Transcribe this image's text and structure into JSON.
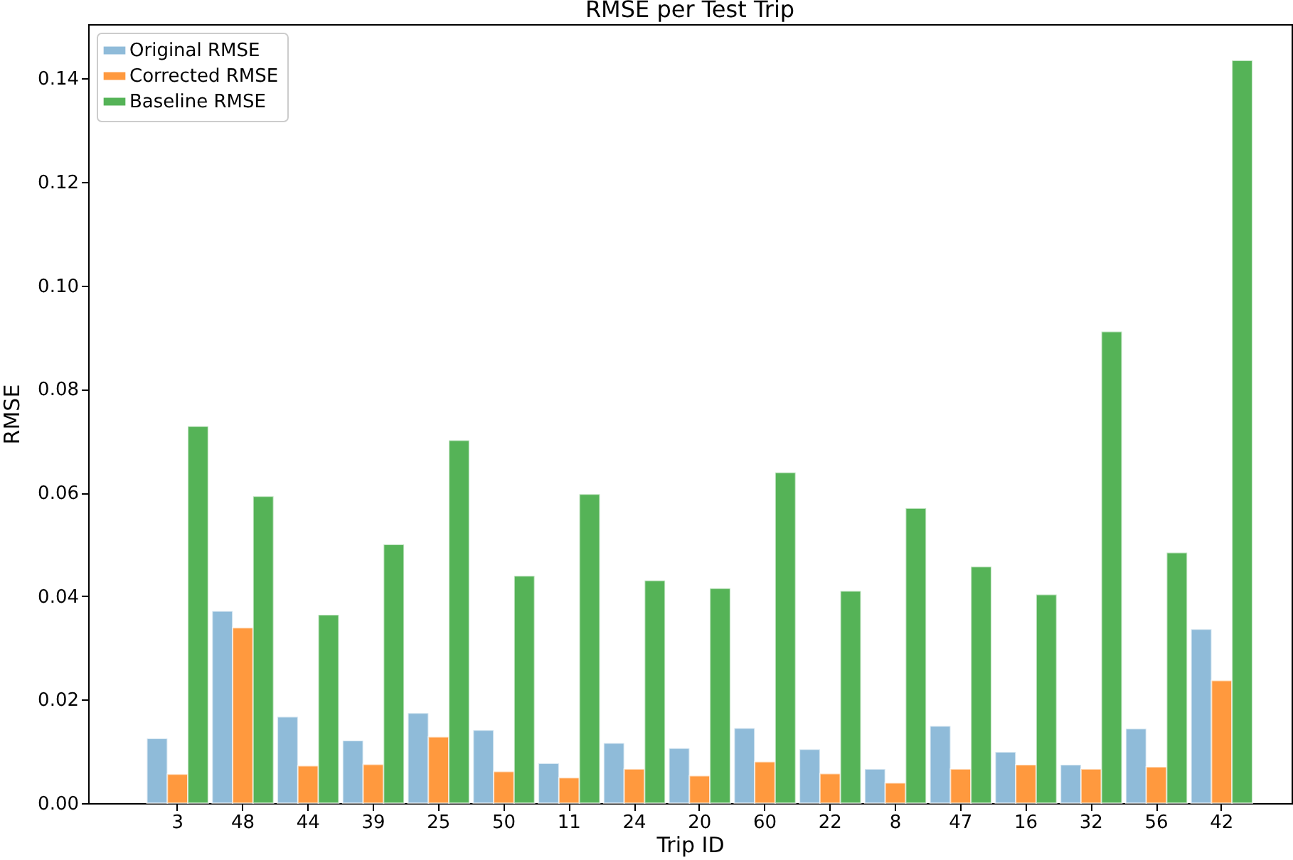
{
  "chart_data": {
    "type": "bar",
    "title": "RMSE per Test Trip",
    "xlabel": "Trip ID",
    "ylabel": "RMSE",
    "categories": [
      "3",
      "48",
      "44",
      "39",
      "25",
      "50",
      "11",
      "24",
      "20",
      "60",
      "22",
      "8",
      "47",
      "16",
      "32",
      "56",
      "42"
    ],
    "series": [
      {
        "name": "Original RMSE",
        "color": "#8fbbd9",
        "values": [
          0.0125,
          0.0371,
          0.0167,
          0.0121,
          0.0174,
          0.0141,
          0.0077,
          0.0116,
          0.0106,
          0.0145,
          0.0104,
          0.0066,
          0.0149,
          0.0099,
          0.0074,
          0.0144,
          0.0336
        ]
      },
      {
        "name": "Corrected RMSE",
        "color": "#ff993e",
        "values": [
          0.0056,
          0.0339,
          0.0072,
          0.0075,
          0.0128,
          0.0061,
          0.0049,
          0.0066,
          0.0053,
          0.008,
          0.0057,
          0.0039,
          0.0066,
          0.0074,
          0.0066,
          0.007,
          0.0237
        ]
      },
      {
        "name": "Baseline RMSE",
        "color": "#55b357",
        "values": [
          0.0728,
          0.0593,
          0.0364,
          0.05,
          0.0701,
          0.0439,
          0.0597,
          0.043,
          0.0415,
          0.0639,
          0.041,
          0.057,
          0.0457,
          0.0403,
          0.0911,
          0.0484,
          0.1435
        ]
      }
    ],
    "ylim": [
      0,
      0.1505
    ],
    "yticks": [
      {
        "value": 0,
        "label": "0.00"
      },
      {
        "value": 0.02,
        "label": "0.02"
      },
      {
        "value": 0.04,
        "label": "0.04"
      },
      {
        "value": 0.06,
        "label": "0.06"
      },
      {
        "value": 0.08,
        "label": "0.08"
      },
      {
        "value": 0.1,
        "label": "0.10"
      },
      {
        "value": 0.12,
        "label": "0.12"
      },
      {
        "value": 0.14,
        "label": "0.14"
      }
    ],
    "grid": false,
    "legend": "top left"
  }
}
